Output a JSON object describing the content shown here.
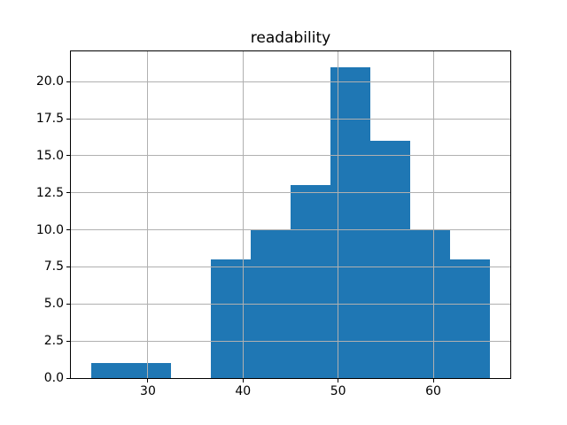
{
  "figure": {
    "title": "readability"
  },
  "chart_data": {
    "type": "bar",
    "subtype": "histogram",
    "title": "readability",
    "xlabel": "",
    "ylabel": "",
    "bin_edges": [
      24.0,
      28.2,
      32.4,
      36.6,
      40.8,
      45.0,
      49.2,
      53.4,
      57.6,
      61.8,
      66.0
    ],
    "counts": [
      1,
      1,
      0,
      8,
      10,
      13,
      21,
      16,
      10,
      8
    ],
    "total_count": 88,
    "xlim": [
      21.9,
      68.1
    ],
    "ylim": [
      0,
      22.05
    ],
    "xticks": [
      {
        "value": 30,
        "label": "30"
      },
      {
        "value": 40,
        "label": "40"
      },
      {
        "value": 50,
        "label": "50"
      },
      {
        "value": 60,
        "label": "60"
      }
    ],
    "yticks": [
      {
        "value": 0.0,
        "label": "0.0"
      },
      {
        "value": 2.5,
        "label": "2.5"
      },
      {
        "value": 5.0,
        "label": "5.0"
      },
      {
        "value": 7.5,
        "label": "7.5"
      },
      {
        "value": 10.0,
        "label": "10.0"
      },
      {
        "value": 12.5,
        "label": "12.5"
      },
      {
        "value": 15.0,
        "label": "15.0"
      },
      {
        "value": 17.5,
        "label": "17.5"
      },
      {
        "value": 20.0,
        "label": "20.0"
      }
    ],
    "grid": true,
    "grid_over_bars": true,
    "legend": false,
    "colors": {
      "bar": "#1f77b4",
      "grid": "#b0b0b0",
      "spine": "#000000",
      "text": "#000000",
      "background": "#ffffff"
    }
  }
}
